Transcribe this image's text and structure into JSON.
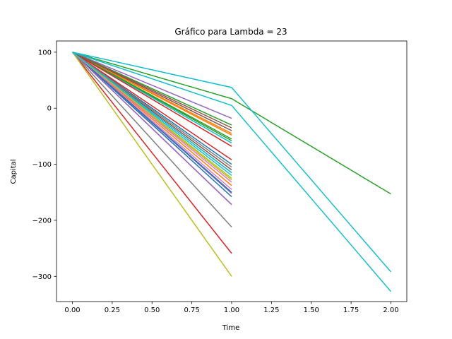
{
  "chart_data": {
    "type": "line",
    "title": "Gráfico para Lambda = 23",
    "xlabel": "Time",
    "ylabel": "Capital",
    "xlim": [
      -0.1,
      2.1
    ],
    "ylim": [
      -345,
      120
    ],
    "xticks": [
      0.0,
      0.25,
      0.5,
      0.75,
      1.0,
      1.25,
      1.5,
      1.75,
      2.0
    ],
    "xtick_labels": [
      "0.00",
      "0.25",
      "0.50",
      "0.75",
      "1.00",
      "1.25",
      "1.50",
      "1.75",
      "2.00"
    ],
    "yticks": [
      100,
      0,
      -100,
      -200,
      -300
    ],
    "ytick_labels": [
      "100",
      "0",
      "−100",
      "−200",
      "−300"
    ],
    "grid": false,
    "palette": [
      "#1f77b4",
      "#ff7f0e",
      "#2ca02c",
      "#d62728",
      "#9467bd",
      "#8c564b",
      "#e377c2",
      "#7f7f7f",
      "#bcbd22",
      "#17becf"
    ],
    "series": [
      {
        "color": "#1f77b4",
        "x": [
          0,
          1
        ],
        "y": [
          100,
          -158
        ]
      },
      {
        "color": "#ff7f0e",
        "x": [
          0,
          1
        ],
        "y": [
          100,
          -138
        ]
      },
      {
        "color": "#2ca02c",
        "x": [
          0,
          1
        ],
        "y": [
          100,
          -55
        ]
      },
      {
        "color": "#d62728",
        "x": [
          0,
          1
        ],
        "y": [
          100,
          -259
        ]
      },
      {
        "color": "#9467bd",
        "x": [
          0,
          1
        ],
        "y": [
          100,
          -18
        ]
      },
      {
        "color": "#8c564b",
        "x": [
          0,
          1
        ],
        "y": [
          100,
          -110
        ]
      },
      {
        "color": "#e377c2",
        "x": [
          0,
          1
        ],
        "y": [
          100,
          -172
        ]
      },
      {
        "color": "#7f7f7f",
        "x": [
          0,
          1
        ],
        "y": [
          100,
          -212
        ]
      },
      {
        "color": "#bcbd22",
        "x": [
          0,
          1
        ],
        "y": [
          100,
          -300
        ]
      },
      {
        "color": "#17becf",
        "x": [
          0,
          1
        ],
        "y": [
          100,
          -120
        ]
      },
      {
        "color": "#1f77b4",
        "x": [
          0,
          1
        ],
        "y": [
          100,
          -100
        ]
      },
      {
        "color": "#ff7f0e",
        "x": [
          0,
          1
        ],
        "y": [
          100,
          -45
        ]
      },
      {
        "color": "#2ca02c",
        "x": [
          0,
          1
        ],
        "y": [
          100,
          -30
        ]
      },
      {
        "color": "#d62728",
        "x": [
          0,
          1
        ],
        "y": [
          100,
          -92
        ]
      },
      {
        "color": "#9467bd",
        "x": [
          0,
          1
        ],
        "y": [
          100,
          -152
        ]
      },
      {
        "color": "#8c564b",
        "x": [
          0,
          1
        ],
        "y": [
          100,
          -35
        ]
      },
      {
        "color": "#e377c2",
        "x": [
          0,
          1
        ],
        "y": [
          100,
          -145
        ]
      },
      {
        "color": "#7f7f7f",
        "x": [
          0,
          1
        ],
        "y": [
          100,
          -105
        ]
      },
      {
        "color": "#bcbd22",
        "x": [
          0,
          1
        ],
        "y": [
          100,
          -128
        ]
      },
      {
        "color": "#17becf",
        "x": [
          0,
          1
        ],
        "y": [
          100,
          -62
        ]
      },
      {
        "color": "#1f77b4",
        "x": [
          0,
          1
        ],
        "y": [
          100,
          -150
        ]
      },
      {
        "color": "#ff7f0e",
        "x": [
          0,
          1
        ],
        "y": [
          100,
          -48
        ]
      },
      {
        "color": "#2ca02c",
        "x": [
          0,
          1
        ],
        "y": [
          100,
          -58
        ]
      },
      {
        "color": "#d62728",
        "x": [
          0,
          1
        ],
        "y": [
          100,
          -68
        ]
      },
      {
        "color": "#9467bd",
        "x": [
          0,
          1
        ],
        "y": [
          100,
          -172
        ]
      },
      {
        "color": "#8c564b",
        "x": [
          0,
          1
        ],
        "y": [
          100,
          -40
        ]
      },
      {
        "color": "#e377c2",
        "x": [
          0,
          1
        ],
        "y": [
          100,
          -132
        ]
      },
      {
        "color": "#7f7f7f",
        "x": [
          0,
          1
        ],
        "y": [
          100,
          -115
        ]
      },
      {
        "color": "#bcbd22",
        "x": [
          0,
          1
        ],
        "y": [
          100,
          -125
        ]
      },
      {
        "color": "#17becf",
        "x": [
          0,
          1
        ],
        "y": [
          100,
          -115
        ]
      },
      {
        "color": "#2ca02c",
        "x": [
          0,
          1,
          2
        ],
        "y": [
          100,
          17,
          -153
        ]
      },
      {
        "color": "#17becf",
        "x": [
          0,
          1,
          2
        ],
        "y": [
          100,
          37,
          -292
        ]
      },
      {
        "color": "#17becf",
        "x": [
          0,
          1,
          2
        ],
        "y": [
          100,
          5,
          -327
        ]
      }
    ]
  }
}
